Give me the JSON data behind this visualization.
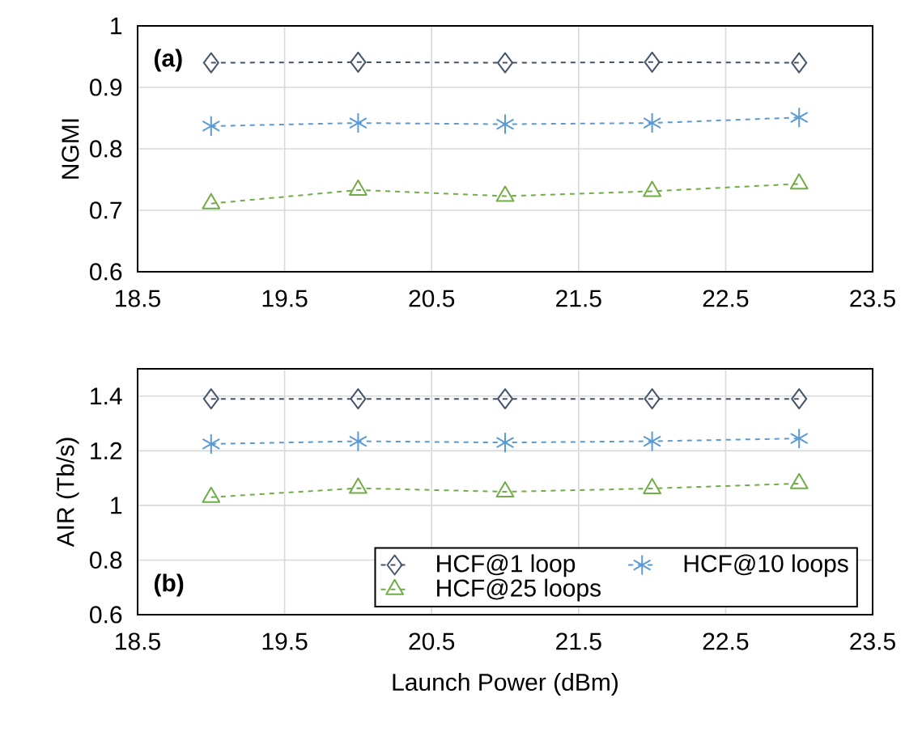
{
  "chart_data": [
    {
      "type": "line",
      "ylabel": "NGMI",
      "annotations": [
        "(a)"
      ],
      "x": [
        19,
        20,
        21,
        22,
        23
      ],
      "xlim": [
        18.5,
        23.5
      ],
      "xticks": [
        18.5,
        19.5,
        20.5,
        21.5,
        22.5,
        23.5
      ],
      "ylim": [
        0.6,
        1
      ],
      "yticks": [
        0.6,
        0.7,
        0.8,
        0.9,
        1
      ],
      "grid": true,
      "line_style": "dashed",
      "legend": false,
      "series": [
        {
          "color": "#44546a",
          "marker": "diamond",
          "values": [
            0.94,
            0.941,
            0.94,
            0.941,
            0.94
          ]
        },
        {
          "color": "#5b9bd5",
          "marker": "cross",
          "values": [
            0.837,
            0.842,
            0.84,
            0.842,
            0.851
          ]
        },
        {
          "color": "#70ad47",
          "marker": "triangle",
          "values": [
            0.711,
            0.733,
            0.723,
            0.731,
            0.743
          ]
        }
      ]
    },
    {
      "type": "line",
      "ylabel": "AIR (Tb/s)",
      "xlabel": "Launch Power (dBm)",
      "annotations": [
        "(b)"
      ],
      "x": [
        19,
        20,
        21,
        22,
        23
      ],
      "xlim": [
        18.5,
        23.5
      ],
      "xticks": [
        18.5,
        19.5,
        20.5,
        21.5,
        22.5,
        23.5
      ],
      "ylim": [
        0.6,
        1.5
      ],
      "yticks": [
        0.6,
        0.8,
        1,
        1.2,
        1.4
      ],
      "grid": true,
      "line_style": "dashed",
      "legend": "bottom right",
      "series": [
        {
          "name": "HCF@1 loop",
          "color": "#44546a",
          "marker": "diamond",
          "values": [
            1.39,
            1.39,
            1.39,
            1.39,
            1.39
          ]
        },
        {
          "name": "HCF@10 loops",
          "color": "#5b9bd5",
          "marker": "cross",
          "values": [
            1.225,
            1.235,
            1.23,
            1.235,
            1.245
          ]
        },
        {
          "name": "HCF@25 loops",
          "color": "#70ad47",
          "marker": "triangle",
          "values": [
            1.03,
            1.063,
            1.05,
            1.062,
            1.08
          ]
        }
      ]
    }
  ]
}
